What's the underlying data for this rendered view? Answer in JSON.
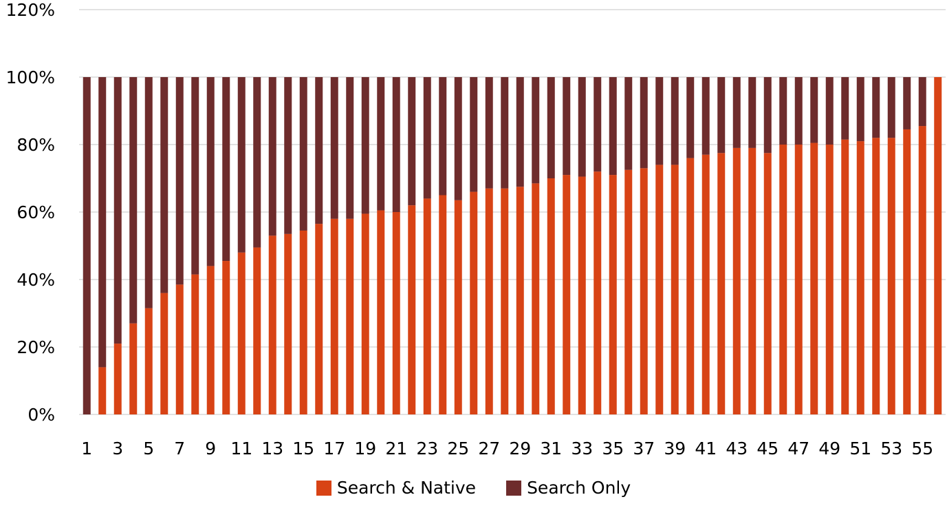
{
  "chart_data": {
    "type": "bar",
    "stacked": true,
    "title": "",
    "xlabel": "",
    "ylabel": "",
    "ylim": [
      0,
      120
    ],
    "yticks": [
      "0%",
      "20%",
      "40%",
      "60%",
      "80%",
      "100%",
      "120%"
    ],
    "ytick_values": [
      0,
      20,
      40,
      60,
      80,
      100,
      120
    ],
    "grid": true,
    "legend_position": "bottom",
    "categories": [
      "1",
      "2",
      "3",
      "4",
      "5",
      "6",
      "7",
      "8",
      "9",
      "10",
      "11",
      "12",
      "13",
      "14",
      "15",
      "16",
      "17",
      "18",
      "19",
      "20",
      "21",
      "22",
      "23",
      "24",
      "25",
      "26",
      "27",
      "28",
      "29",
      "30",
      "31",
      "32",
      "33",
      "34",
      "35",
      "36",
      "37",
      "38",
      "39",
      "40",
      "41",
      "42",
      "43",
      "44",
      "45",
      "46",
      "47",
      "48",
      "49",
      "50",
      "51",
      "52",
      "53",
      "54",
      "55",
      "56"
    ],
    "xtick_labels": [
      "1",
      "3",
      "5",
      "7",
      "9",
      "11",
      "13",
      "15",
      "17",
      "19",
      "21",
      "23",
      "25",
      "27",
      "29",
      "31",
      "33",
      "35",
      "37",
      "39",
      "41",
      "43",
      "45",
      "47",
      "49",
      "51",
      "53",
      "55"
    ],
    "series": [
      {
        "name": "Search & Native",
        "color": "#D84315",
        "values": [
          0,
          14,
          21,
          27,
          31.5,
          36,
          38.5,
          41.5,
          44,
          45.5,
          48,
          49.5,
          53,
          53.5,
          54.5,
          56.5,
          58,
          58,
          59.5,
          60.5,
          60,
          62,
          64,
          65,
          63.5,
          66,
          67,
          67,
          67.5,
          68.5,
          70,
          71,
          70.5,
          72,
          71,
          72.5,
          73,
          74,
          74,
          76,
          77,
          77.5,
          79,
          79,
          77.5,
          80,
          80,
          80.5,
          80,
          81.5,
          81,
          82,
          82,
          84.5,
          85.5,
          100
        ]
      },
      {
        "name": "Search Only",
        "color": "#6E2C2C",
        "values": [
          100,
          86,
          79,
          73,
          68.5,
          64,
          61.5,
          58.5,
          56,
          54.5,
          52,
          50.5,
          47,
          46.5,
          45.5,
          43.5,
          42,
          42,
          40.5,
          39.5,
          40,
          38,
          36,
          35,
          36.5,
          34,
          33,
          33,
          32.5,
          31.5,
          30,
          29,
          29.5,
          28,
          29,
          27.5,
          27,
          26,
          26,
          24,
          23,
          22.5,
          21,
          21,
          22.5,
          20,
          20,
          19.5,
          20,
          18.5,
          19,
          18,
          18,
          15.5,
          14.5,
          0
        ]
      }
    ]
  }
}
